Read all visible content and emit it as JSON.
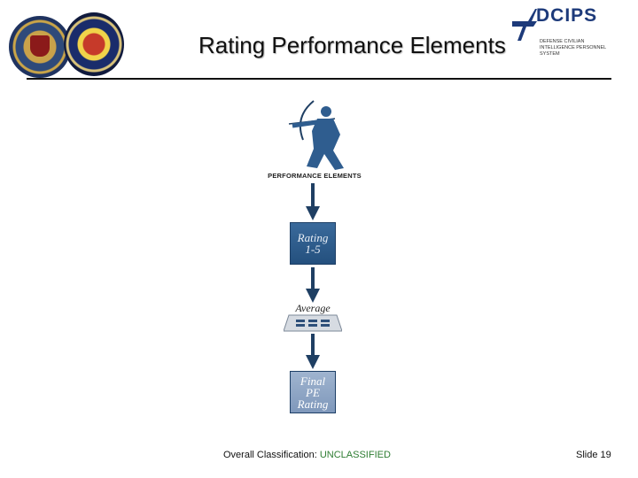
{
  "slide": {
    "title": "Rating Performance Elements",
    "number_label": "Slide 19"
  },
  "logo": {
    "name": "DCIPS",
    "subtitle": "DEFENSE CIVILIAN INTELLIGENCE PERSONNEL SYSTEM"
  },
  "diagram": {
    "top_label": "PERFORMANCE ELEMENTS",
    "step1": {
      "line1": "Rating",
      "line2": "1-5"
    },
    "step2": {
      "label": "Average"
    },
    "step3": {
      "line1": "Final",
      "line2": "PE",
      "line3": "Rating"
    }
  },
  "footer": {
    "classification_label": "Overall Classification:",
    "classification_value": "UNCLASSIFIED"
  },
  "colors": {
    "box_dark": "#2d5a8a",
    "box_light": "#8ea6c6",
    "arrow": "#1f3f63",
    "unclassified": "#2e7d32",
    "logo_blue": "#1d3a7a"
  }
}
